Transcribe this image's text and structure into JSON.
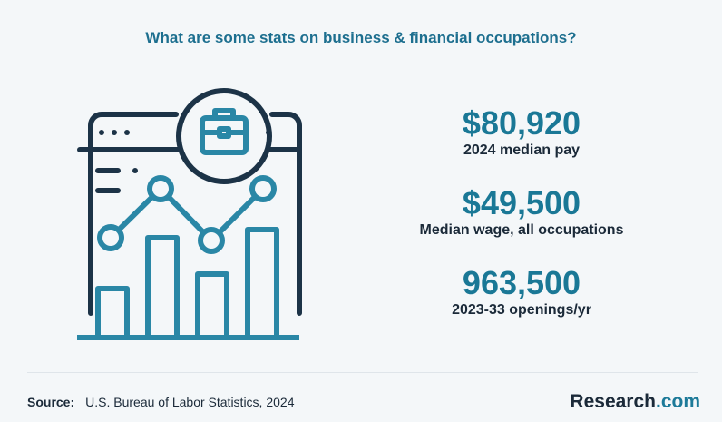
{
  "header": {
    "title": "What are some stats on business & financial occupations?"
  },
  "stats": [
    {
      "value": "$80,920",
      "label": "2024 median pay"
    },
    {
      "value": "$49,500",
      "label": "Median wage, all occupations"
    },
    {
      "value": "963,500",
      "label": "2023-33 openings/yr"
    }
  ],
  "footer": {
    "source_label": "Source:",
    "source": "U.S. Bureau of Labor Statistics, 2024",
    "brand": {
      "name": "Research",
      "suffix": ".com"
    }
  }
}
